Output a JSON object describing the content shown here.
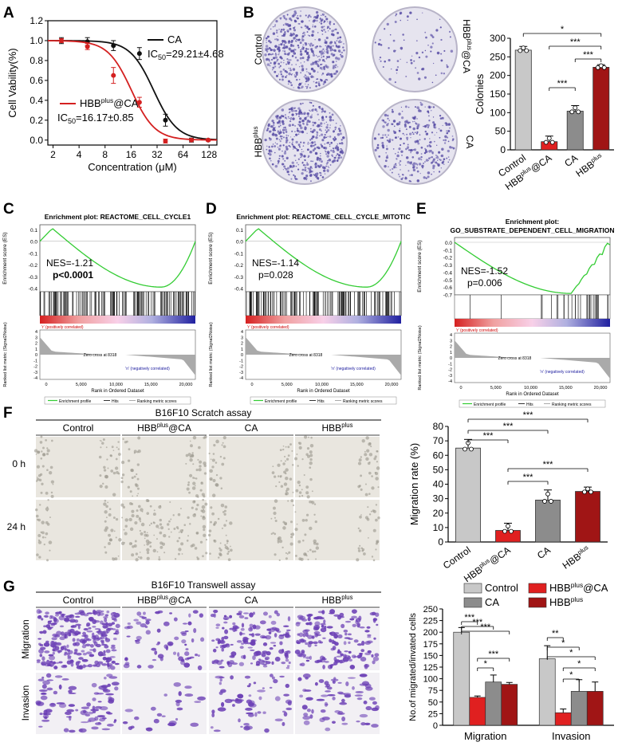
{
  "figure": {
    "panel_letters": [
      "A",
      "B",
      "C",
      "D",
      "E",
      "F",
      "G"
    ]
  },
  "chart_data": [
    {
      "id": "A",
      "type": "line",
      "xlabel": "Concentration (μM)",
      "ylabel": "Cell Vability(%)",
      "x_ticks": [
        "2",
        "4",
        "8",
        "16",
        "32",
        "64",
        "128"
      ],
      "y_ticks": [
        "0.0",
        "0.2",
        "0.4",
        "0.6",
        "0.8",
        "1.0",
        "1.2"
      ],
      "ylim": [
        -0.05,
        1.2
      ],
      "x_log2": true,
      "series": [
        {
          "name": "CA",
          "color": "#111111",
          "ic50_label": "IC",
          "ic50_text": "=29.21±4.68",
          "ic50": 29.21,
          "x": [
            2.5,
            5,
            10,
            20,
            40,
            80,
            125
          ],
          "y": [
            1.0,
            0.99,
            0.95,
            0.87,
            0.2,
            0.0,
            0.0
          ],
          "err": [
            0.03,
            0.04,
            0.05,
            0.06,
            0.06,
            0.02,
            0.01
          ]
        },
        {
          "name": "HBB@CA",
          "name_base": "HBB",
          "name_sup": "plus",
          "name_tail": "@CA",
          "color": "#d42020",
          "ic50_label": "IC",
          "ic50_text": "=16.17±0.85",
          "ic50": 16.17,
          "x": [
            2.5,
            5,
            10,
            20,
            40,
            80,
            125
          ],
          "y": [
            1.0,
            0.94,
            0.65,
            0.38,
            -0.01,
            0.0,
            0.0
          ],
          "err": [
            0.02,
            0.03,
            0.08,
            0.05,
            0.02,
            0.01,
            0.01
          ]
        }
      ]
    },
    {
      "id": "B",
      "type": "bar",
      "ylabel": "Colonies",
      "ylim": [
        0,
        300
      ],
      "y_ticks": [
        "0",
        "50",
        "100",
        "150",
        "200",
        "250",
        "300"
      ],
      "categories": [
        {
          "base": "Control",
          "sup": "",
          "tail": ""
        },
        {
          "base": "HBB",
          "sup": "plus",
          "tail": "@CA"
        },
        {
          "base": "CA",
          "sup": "",
          "tail": ""
        },
        {
          "base": "HBB",
          "sup": "plus",
          "tail": ""
        }
      ],
      "values": [
        268,
        22,
        104,
        222
      ],
      "errors": [
        10,
        15,
        15,
        7
      ],
      "colors": [
        "#c8c8c8",
        "#e02020",
        "#8c8c8c",
        "#a01515"
      ],
      "significance": [
        "*",
        "***",
        "***",
        "***"
      ]
    },
    {
      "id": "F",
      "type": "bar",
      "ylabel": "Migration rate (%)",
      "ylim": [
        0,
        80
      ],
      "y_ticks": [
        "0",
        "10",
        "20",
        "30",
        "40",
        "50",
        "60",
        "70",
        "80"
      ],
      "categories": [
        {
          "base": "Control",
          "sup": "",
          "tail": ""
        },
        {
          "base": "HBB",
          "sup": "plus",
          "tail": "@CA"
        },
        {
          "base": "CA",
          "sup": "",
          "tail": ""
        },
        {
          "base": "HBB",
          "sup": "plus",
          "tail": ""
        }
      ],
      "values": [
        65,
        8,
        29,
        35
      ],
      "errors": [
        6,
        5,
        7,
        3
      ],
      "colors": [
        "#c8c8c8",
        "#e02020",
        "#8c8c8c",
        "#a01515"
      ],
      "significance": [
        "***",
        "***",
        "***",
        "***",
        "***"
      ]
    },
    {
      "id": "G",
      "type": "bar",
      "ylabel": "No.of migrated/invated cells",
      "ylim": [
        0,
        250
      ],
      "y_ticks": [
        "0",
        "25",
        "50",
        "75",
        "100",
        "125",
        "150",
        "175",
        "200",
        "225",
        "250"
      ],
      "groups": [
        "Migration",
        "Invasion"
      ],
      "series": [
        {
          "name": "Control",
          "base": "Control",
          "sup": "",
          "color": "#c8c8c8",
          "values": [
            200,
            143
          ],
          "errors": [
            10,
            28
          ]
        },
        {
          "name": "HBB@CA",
          "base": "HBB",
          "sup": "plus",
          "tail": "@CA",
          "color": "#e02020",
          "values": [
            60,
            27
          ],
          "errors": [
            3,
            8
          ]
        },
        {
          "name": "CA",
          "base": "CA",
          "sup": "",
          "color": "#8c8c8c",
          "values": [
            93,
            73
          ],
          "errors": [
            15,
            25
          ]
        },
        {
          "name": "HBB",
          "base": "HBB",
          "sup": "plus",
          "color": "#a01515",
          "values": [
            88,
            73
          ],
          "errors": [
            4,
            20
          ]
        }
      ],
      "significance_migration": [
        "***",
        "***",
        "***",
        "***",
        "*"
      ],
      "significance_invasion": [
        "**",
        "*",
        "*",
        "*",
        "*"
      ]
    },
    {
      "id": "C",
      "type": "gsea",
      "title": "Enrichment plot: REACTOME_CELL_CYCLE1",
      "nes": "NES=-1.21",
      "p": "p<0.0001",
      "es_ticks": [
        "0.1",
        "0.0",
        "-0.1",
        "-0.2",
        "-0.3",
        "-0.4"
      ],
      "min_es": -0.45
    },
    {
      "id": "D",
      "type": "gsea",
      "title": "Enrichment plot: REACTOME_CELL_CYCLE_MITOTIC",
      "nes": "NES=-1.14",
      "p": "p=0.028",
      "es_ticks": [
        "0.1",
        "0.0",
        "-0.1",
        "-0.2",
        "-0.3",
        "-0.4"
      ],
      "min_es": -0.43
    },
    {
      "id": "E",
      "type": "gsea",
      "title": "Enrichment plot:",
      "title2": "GO_SUBSTRATE_DEPENDENT_CELL_MIGRATION",
      "nes": "NES=-1.52",
      "p": "p=0.006",
      "es_ticks": [
        "0.0",
        "-0.1",
        "-0.2",
        "-0.3",
        "-0.4",
        "-0.5",
        "-0.6",
        "-0.7"
      ],
      "min_es": -0.7
    }
  ],
  "gsea_common": {
    "ylabel_es": "Enrichment score (ES)",
    "ylabel_rank": "Ranked list metric (Signal2Noise)",
    "xlabel": "Rank in Ordered Dataset",
    "x_ticks": [
      "0",
      "5,000",
      "10,000",
      "15,000",
      "20,000"
    ],
    "rank_y_ticks": [
      "4",
      "3",
      "2",
      "1",
      "0",
      "-1",
      "-2",
      "-3",
      "-4"
    ],
    "pos_label": "'r' (positively correlated)",
    "neg_label": "'n' (negatively correlated)",
    "zero_cross": "Zero cross at 8318",
    "legend": [
      "Enrichment profile",
      "Hits",
      "Ranking metric scores"
    ]
  },
  "panelB": {
    "dish_labels": [
      {
        "base": "Control",
        "sup": "",
        "tail": ""
      },
      {
        "base": "HBB",
        "sup": "plus",
        "tail": "@CA"
      },
      {
        "base": "HBB",
        "sup": "plus",
        "tail": ""
      },
      {
        "base": "CA",
        "sup": "",
        "tail": ""
      }
    ]
  },
  "panelF": {
    "title": "B16F10  Scratch assay",
    "rows": [
      "0 h",
      "24 h"
    ],
    "cols": [
      {
        "base": "Control",
        "sup": "",
        "tail": ""
      },
      {
        "base": "HBB",
        "sup": "plus",
        "tail": "@CA"
      },
      {
        "base": "CA",
        "sup": "",
        "tail": ""
      },
      {
        "base": "HBB",
        "sup": "plus",
        "tail": ""
      }
    ]
  },
  "panelG": {
    "title": "B16F10  Transwell assay",
    "rows": [
      "Migration",
      "Invasion"
    ],
    "cols": [
      {
        "base": "Control",
        "sup": "",
        "tail": ""
      },
      {
        "base": "HBB",
        "sup": "plus",
        "tail": "@CA"
      },
      {
        "base": "CA",
        "sup": "",
        "tail": ""
      },
      {
        "base": "HBB",
        "sup": "plus",
        "tail": ""
      }
    ]
  },
  "colors": {
    "bg": "#ffffff",
    "dish": "#e6e4ef",
    "stain": "#5a4fa6",
    "gsea_green": "#33cc33",
    "scratch": "#e9e6df",
    "transwell": "#6b3fb5"
  }
}
